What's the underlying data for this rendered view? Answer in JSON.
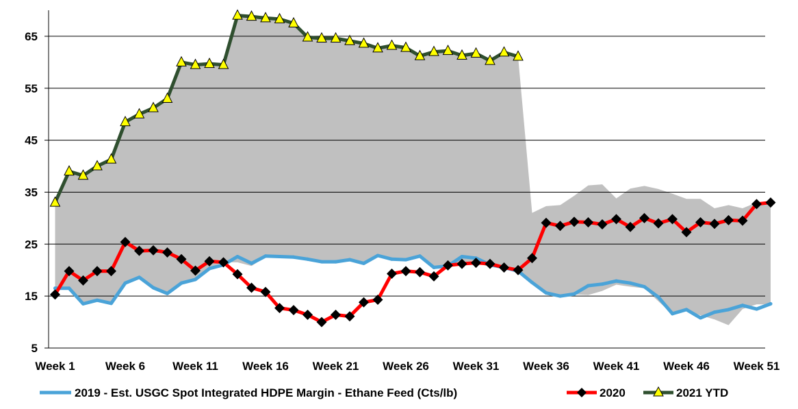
{
  "chart_data": {
    "type": "line",
    "title": "",
    "xlabel": "",
    "ylabel": "",
    "ylim": [
      5,
      70
    ],
    "yticks": [
      5,
      15,
      25,
      35,
      45,
      55,
      65
    ],
    "xtick_labels": [
      "Week 1",
      "Week 6",
      "Week 11",
      "Week 16",
      "Week 21",
      "Week 26",
      "Week 31",
      "Week 36",
      "Week 41",
      "Week 46",
      "Week 51"
    ],
    "xtick_weeks": [
      1,
      6,
      11,
      16,
      21,
      26,
      31,
      36,
      41,
      46,
      51
    ],
    "grid": "horizontal",
    "legend_position": "bottom",
    "band": {
      "color": "#c0c0c0",
      "x": [
        1,
        2,
        3,
        4,
        5,
        6,
        7,
        8,
        9,
        10,
        11,
        12,
        13,
        14,
        15,
        16,
        17,
        18,
        19,
        20,
        21,
        22,
        23,
        24,
        25,
        26,
        27,
        28,
        29,
        30,
        31,
        32,
        33,
        34,
        35,
        36,
        37,
        38,
        39,
        40,
        41,
        42,
        43,
        44,
        45,
        46,
        47,
        48,
        49,
        50,
        51,
        52
      ],
      "upper": [
        33,
        39,
        38.2,
        40,
        41.3,
        48.5,
        50,
        51.2,
        53,
        60,
        59.5,
        59.7,
        59.5,
        69,
        68.8,
        68.5,
        68.3,
        67.5,
        64.8,
        64.6,
        64.6,
        64.1,
        63.6,
        62.7,
        63.2,
        62.8,
        61.2,
        62,
        62.2,
        61.3,
        61.7,
        60.3,
        61.9,
        61.1,
        31,
        32.3,
        32.5,
        34.3,
        36.3,
        36.5,
        33.8,
        35.7,
        36.2,
        35.6,
        34.7,
        33.7,
        33.7,
        31.9,
        32.5,
        31.9,
        33,
        33
      ],
      "lower": [
        16.5,
        16.5,
        13.5,
        14.3,
        13.7,
        17.5,
        18.5,
        16.5,
        15.5,
        17.5,
        18.3,
        20.5,
        21.5,
        21.5,
        20.8,
        22.5,
        22.5,
        22.3,
        22,
        21.5,
        21.4,
        21.8,
        21.2,
        22.5,
        22.2,
        22,
        22.5,
        20.5,
        21,
        21.4,
        21.4,
        20.6,
        20.4,
        19.6,
        17.6,
        15.5,
        14.8,
        15.3,
        15.2,
        16,
        17.2,
        16.8,
        16.5,
        14,
        11.5,
        12.3,
        11.3,
        10.5,
        9.4,
        12.5,
        13.4,
        13.4
      ]
    },
    "series": [
      {
        "name": "2019 - Est. USGC Spot Integrated HDPE Margin - Ethane Feed (Cts/lb)",
        "color": "#4aa3d8",
        "marker": "none",
        "x": [
          1,
          2,
          3,
          4,
          5,
          6,
          7,
          8,
          9,
          10,
          11,
          12,
          13,
          14,
          15,
          16,
          17,
          18,
          19,
          20,
          21,
          22,
          23,
          24,
          25,
          26,
          27,
          28,
          29,
          30,
          31,
          32,
          33,
          34,
          35,
          36,
          37,
          38,
          39,
          40,
          41,
          42,
          43,
          44,
          45,
          46,
          47,
          48,
          49,
          50,
          51,
          52
        ],
        "values": [
          16.5,
          16.5,
          13.5,
          14.2,
          13.6,
          17.5,
          18.6,
          16.6,
          15.5,
          17.5,
          18.2,
          20.3,
          21,
          22.6,
          21.3,
          22.7,
          22.6,
          22.5,
          22.1,
          21.6,
          21.6,
          22,
          21.3,
          22.8,
          22.1,
          22,
          22.7,
          20.5,
          20.8,
          22.6,
          22.3,
          21,
          20.5,
          19.8,
          17.6,
          15.6,
          15,
          15.4,
          17,
          17.3,
          17.9,
          17.5,
          16.8,
          14.8,
          11.6,
          12.4,
          10.8,
          11.9,
          12.4,
          13.2,
          12.5,
          13.5
        ]
      },
      {
        "name": "2020",
        "color": "#ff0000",
        "marker": "diamond",
        "x": [
          1,
          2,
          3,
          4,
          5,
          6,
          7,
          8,
          9,
          10,
          11,
          12,
          13,
          14,
          15,
          16,
          17,
          18,
          19,
          20,
          21,
          22,
          23,
          24,
          25,
          26,
          27,
          28,
          29,
          30,
          31,
          32,
          33,
          34,
          35,
          36,
          37,
          38,
          39,
          40,
          41,
          42,
          43,
          44,
          45,
          46,
          47,
          48,
          49,
          50,
          51,
          52
        ],
        "values": [
          15.3,
          19.8,
          18,
          19.8,
          19.8,
          25.4,
          23.7,
          23.8,
          23.4,
          22.1,
          19.9,
          21.7,
          21.5,
          19.2,
          16.6,
          15.8,
          12.7,
          12.3,
          11.4,
          10,
          11.4,
          11.1,
          13.8,
          14.3,
          19.3,
          19.8,
          19.6,
          18.8,
          20.9,
          21.2,
          21.4,
          21.2,
          20.5,
          20,
          22.3,
          29.1,
          28.5,
          29.3,
          29.2,
          28.8,
          29.8,
          28.3,
          30,
          29,
          29.8,
          27.3,
          29.2,
          28.9,
          29.6,
          29.5,
          32.7,
          33
        ]
      },
      {
        "name": "2021 YTD",
        "color": "#2f4f2f",
        "marker": "triangle",
        "x": [
          1,
          2,
          3,
          4,
          5,
          6,
          7,
          8,
          9,
          10,
          11,
          12,
          13,
          14,
          15,
          16,
          17,
          18,
          19,
          20,
          21,
          22,
          23,
          24,
          25,
          26,
          27,
          28,
          29,
          30,
          31,
          32,
          33,
          34
        ],
        "values": [
          33,
          39,
          38.2,
          40,
          41.3,
          48.5,
          50,
          51.2,
          53,
          60,
          59.5,
          59.7,
          59.5,
          69,
          68.8,
          68.5,
          68.3,
          67.5,
          64.8,
          64.6,
          64.6,
          64.1,
          63.6,
          62.7,
          63.2,
          62.8,
          61.2,
          62,
          62.2,
          61.3,
          61.7,
          60.3,
          61.9,
          61.1
        ]
      }
    ]
  }
}
